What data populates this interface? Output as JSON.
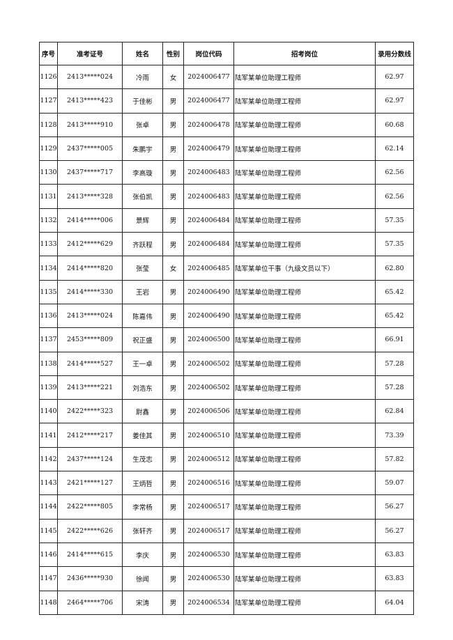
{
  "headers": [
    "序号",
    "准考证号",
    "姓名",
    "性别",
    "岗位代码",
    "招考岗位",
    "录用分数线"
  ],
  "rows": [
    [
      "1126",
      "2413*****024",
      "冷雨",
      "女",
      "2024006477",
      "陆军某单位助理工程师",
      "62.97"
    ],
    [
      "1127",
      "2413*****423",
      "于佳彬",
      "男",
      "2024006477",
      "陆军某单位助理工程师",
      "62.97"
    ],
    [
      "1128",
      "2413*****910",
      "张卓",
      "男",
      "2024006478",
      "陆军某单位助理工程师",
      "60.68"
    ],
    [
      "1129",
      "2437*****005",
      "朱鹏宇",
      "男",
      "2024006479",
      "陆军某单位助理工程师",
      "62.14"
    ],
    [
      "1130",
      "2437*****717",
      "李高璇",
      "男",
      "2024006483",
      "陆军某单位助理工程师",
      "62.56"
    ],
    [
      "1131",
      "2413*****328",
      "张伯凯",
      "男",
      "2024006483",
      "陆军某单位助理工程师",
      "62.56"
    ],
    [
      "1132",
      "2414*****006",
      "景辉",
      "男",
      "2024006484",
      "陆军某单位助理工程师",
      "57.35"
    ],
    [
      "1133",
      "2412*****629",
      "齐跃程",
      "男",
      "2024006484",
      "陆军某单位助理工程师",
      "57.35"
    ],
    [
      "1134",
      "2414*****820",
      "张莹",
      "女",
      "2024006485",
      "陆军某单位干事（九级文员以下）",
      "62.80"
    ],
    [
      "1135",
      "2414*****330",
      "王岩",
      "男",
      "2024006490",
      "陆军某单位助理工程师",
      "65.42"
    ],
    [
      "1136",
      "2413*****024",
      "陈嘉伟",
      "男",
      "2024006490",
      "陆军某单位助理工程师",
      "65.42"
    ],
    [
      "1137",
      "2453*****809",
      "祝正盛",
      "男",
      "2024006500",
      "陆军某单位助理工程师",
      "66.91"
    ],
    [
      "1138",
      "2414*****527",
      "王一卓",
      "男",
      "2024006502",
      "陆军某单位助理工程师",
      "57.28"
    ],
    [
      "1139",
      "2413*****221",
      "刘浩东",
      "男",
      "2024006502",
      "陆军某单位助理工程师",
      "57.28"
    ],
    [
      "1140",
      "2422*****323",
      "尉鑫",
      "男",
      "2024006506",
      "陆军某单位助理工程师",
      "62.84"
    ],
    [
      "1141",
      "2412*****217",
      "姜佳其",
      "男",
      "2024006510",
      "陆军某单位助理工程师",
      "73.39"
    ],
    [
      "1142",
      "2437*****124",
      "生茂志",
      "男",
      "2024006512",
      "陆军某单位助理工程师",
      "57.82"
    ],
    [
      "1143",
      "2421*****127",
      "王炳哲",
      "男",
      "2024006516",
      "陆军某单位助理工程师",
      "59.07"
    ],
    [
      "1144",
      "2422*****805",
      "李常杨",
      "男",
      "2024006517",
      "陆军某单位助理工程师",
      "56.27"
    ],
    [
      "1145",
      "2422*****626",
      "张轩齐",
      "男",
      "2024006517",
      "陆军某单位助理工程师",
      "56.27"
    ],
    [
      "1146",
      "2414*****615",
      "李庆",
      "男",
      "2024006530",
      "陆军某单位助理工程师",
      "63.83"
    ],
    [
      "1147",
      "2436*****930",
      "徐闻",
      "男",
      "2024006530",
      "陆军某单位助理工程师",
      "63.83"
    ],
    [
      "1148",
      "2464*****706",
      "宋涛",
      "男",
      "2024006534",
      "陆军某单位助理工程师",
      "64.04"
    ]
  ]
}
